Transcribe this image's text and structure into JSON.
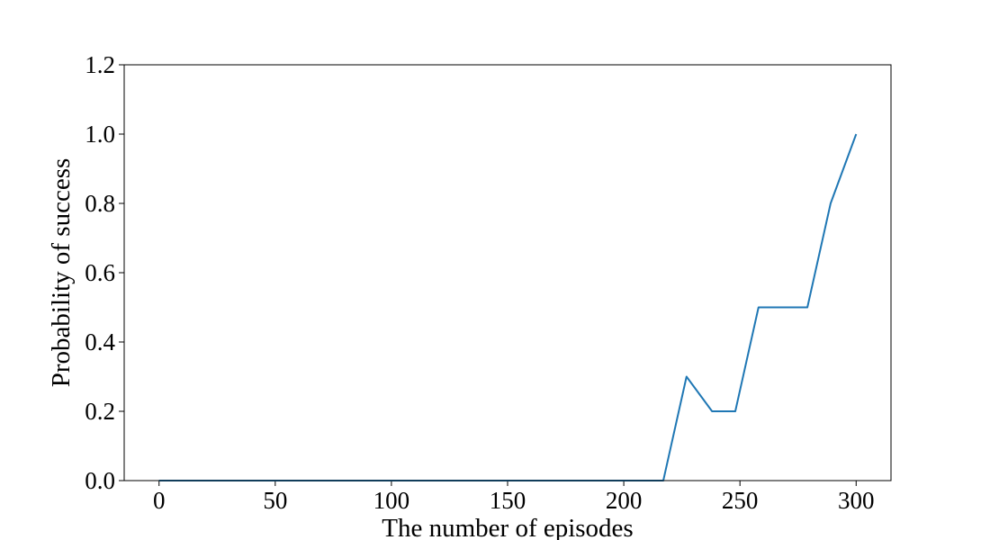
{
  "chart_data": {
    "type": "line",
    "title": "",
    "xlabel": "The number of episodes",
    "ylabel": "Probability of success",
    "xlim": [
      -15,
      315
    ],
    "ylim": [
      0,
      1.2
    ],
    "xticks": [
      0,
      50,
      100,
      150,
      200,
      250,
      300
    ],
    "xtick_labels": [
      "0",
      "50",
      "100",
      "150",
      "200",
      "250",
      "300"
    ],
    "yticks": [
      0,
      0.2,
      0.4,
      0.6,
      0.8,
      1.0,
      1.2
    ],
    "ytick_labels": [
      "0.0",
      "0.2",
      "0.4",
      "0.6",
      "0.8",
      "1.0",
      "1.2"
    ],
    "grid": false,
    "legend": "none",
    "series": [
      {
        "color": "#1f77b4",
        "x": [
          0,
          10,
          20,
          30,
          40,
          50,
          60,
          70,
          80,
          90,
          100,
          110,
          120,
          130,
          140,
          150,
          160,
          170,
          180,
          190,
          200,
          210,
          217,
          227,
          238,
          248,
          258,
          269,
          279,
          289,
          300
        ],
        "y": [
          0,
          0,
          0,
          0,
          0,
          0,
          0,
          0,
          0,
          0,
          0,
          0,
          0,
          0,
          0,
          0,
          0,
          0,
          0,
          0,
          0,
          0,
          0,
          0.3,
          0.2,
          0.2,
          0.5,
          0.5,
          0.5,
          0.8,
          1.0
        ]
      }
    ]
  }
}
